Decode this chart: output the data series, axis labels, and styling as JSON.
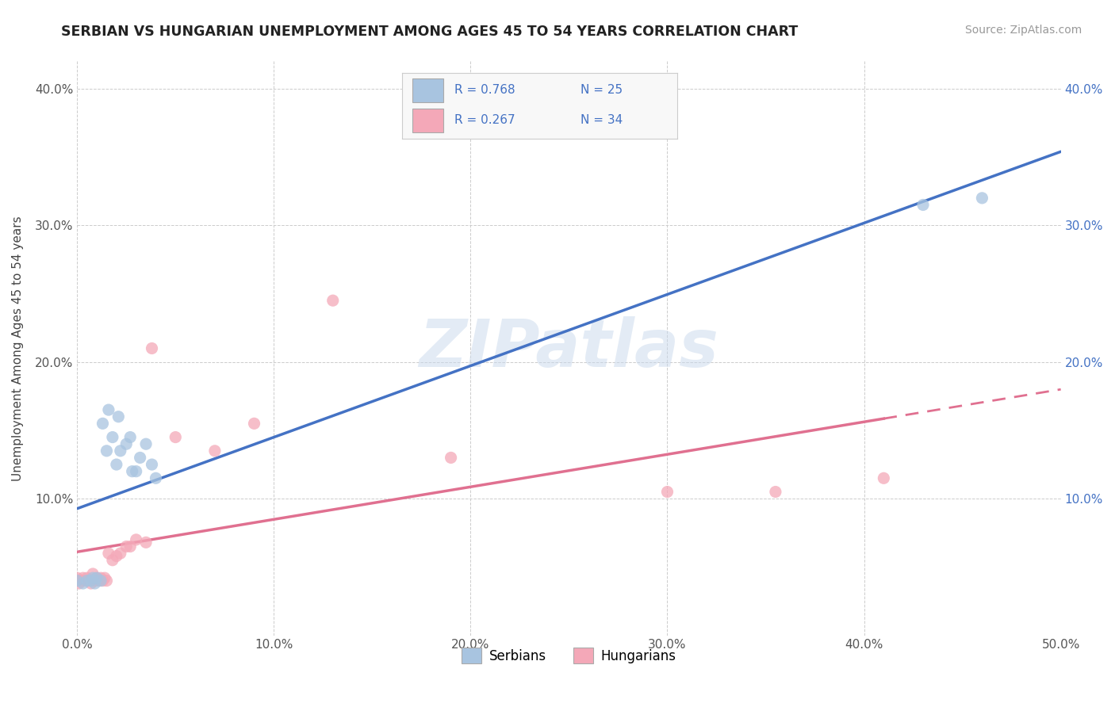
{
  "title": "SERBIAN VS HUNGARIAN UNEMPLOYMENT AMONG AGES 45 TO 54 YEARS CORRELATION CHART",
  "source": "Source: ZipAtlas.com",
  "ylabel": "Unemployment Among Ages 45 to 54 years",
  "xlim": [
    0.0,
    0.5
  ],
  "ylim": [
    0.0,
    0.42
  ],
  "xticks": [
    0.0,
    0.1,
    0.2,
    0.3,
    0.4,
    0.5
  ],
  "yticks": [
    0.1,
    0.2,
    0.3,
    0.4
  ],
  "xtick_labels": [
    "0.0%",
    "10.0%",
    "20.0%",
    "30.0%",
    "40.0%",
    "50.0%"
  ],
  "ytick_labels": [
    "10.0%",
    "20.0%",
    "30.0%",
    "40.0%"
  ],
  "right_ytick_labels": [
    "10.0%",
    "20.0%",
    "30.0%",
    "40.0%"
  ],
  "serbian_R": 0.768,
  "serbian_N": 25,
  "hungarian_R": 0.267,
  "hungarian_N": 34,
  "legend_labels": [
    "Serbians",
    "Hungarians"
  ],
  "serbian_color": "#a8c4e0",
  "hungarian_color": "#f4a8b8",
  "serbian_line_color": "#4472c4",
  "hungarian_line_color": "#e07090",
  "right_tick_color": "#4472c4",
  "watermark_color": "#c8d8ec",
  "serbian_x": [
    0.0,
    0.003,
    0.005,
    0.007,
    0.008,
    0.009,
    0.01,
    0.012,
    0.013,
    0.015,
    0.016,
    0.018,
    0.02,
    0.021,
    0.022,
    0.025,
    0.027,
    0.028,
    0.03,
    0.032,
    0.035,
    0.038,
    0.04,
    0.43,
    0.46
  ],
  "serbian_y": [
    0.04,
    0.038,
    0.04,
    0.04,
    0.042,
    0.038,
    0.042,
    0.04,
    0.155,
    0.135,
    0.165,
    0.145,
    0.125,
    0.16,
    0.135,
    0.14,
    0.145,
    0.12,
    0.12,
    0.13,
    0.14,
    0.125,
    0.115,
    0.315,
    0.32
  ],
  "hungarian_x": [
    0.0,
    0.0,
    0.001,
    0.002,
    0.003,
    0.004,
    0.005,
    0.006,
    0.007,
    0.008,
    0.009,
    0.01,
    0.011,
    0.012,
    0.013,
    0.014,
    0.015,
    0.016,
    0.018,
    0.02,
    0.022,
    0.025,
    0.027,
    0.03,
    0.035,
    0.038,
    0.05,
    0.07,
    0.09,
    0.13,
    0.19,
    0.3,
    0.355,
    0.41
  ],
  "hungarian_y": [
    0.04,
    0.042,
    0.038,
    0.04,
    0.042,
    0.04,
    0.042,
    0.04,
    0.038,
    0.045,
    0.04,
    0.042,
    0.04,
    0.042,
    0.04,
    0.042,
    0.04,
    0.06,
    0.055,
    0.058,
    0.06,
    0.065,
    0.065,
    0.07,
    0.068,
    0.21,
    0.145,
    0.135,
    0.155,
    0.245,
    0.13,
    0.105,
    0.105,
    0.115
  ]
}
